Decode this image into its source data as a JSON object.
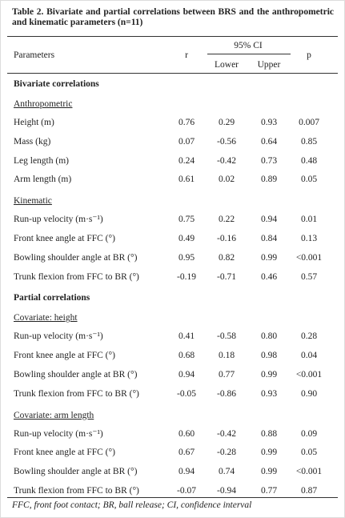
{
  "title": "Table 2. Bivariate and partial correlations between BRS and the anthropometric and kinematic parameters (n=11)",
  "header": {
    "parameters": "Parameters",
    "r": "r",
    "ci": "95% CI",
    "lower": "Lower",
    "upper": "Upper",
    "p": "p"
  },
  "sections": [
    {
      "title": "Bivariate correlations",
      "groups": [
        {
          "title": "Anthropometric",
          "rows": [
            [
              "Height (m)",
              "0.76",
              "0.29",
              "0.93",
              "0.007"
            ],
            [
              "Mass (kg)",
              "0.07",
              "-0.56",
              "0.64",
              "0.85"
            ],
            [
              "Leg length (m)",
              "0.24",
              "-0.42",
              "0.73",
              "0.48"
            ],
            [
              "Arm length (m)",
              "0.61",
              "0.02",
              "0.89",
              "0.05"
            ]
          ]
        },
        {
          "title": "Kinematic",
          "rows": [
            [
              "Run-up velocity (m·s⁻¹)",
              "0.75",
              "0.22",
              "0.94",
              "0.01"
            ],
            [
              "Front knee angle at FFC (°)",
              "0.49",
              "-0.16",
              "0.84",
              "0.13"
            ],
            [
              "Bowling shoulder angle at BR (°)",
              "0.95",
              "0.82",
              "0.99",
              "<0.001"
            ],
            [
              "Trunk flexion from FFC to BR (°)",
              "-0.19",
              "-0.71",
              "0.46",
              "0.57"
            ]
          ]
        }
      ]
    },
    {
      "title": "Partial correlations",
      "groups": [
        {
          "title": "Covariate: height",
          "rows": [
            [
              "Run-up velocity (m·s⁻¹)",
              "0.41",
              "-0.58",
              "0.80",
              "0.28"
            ],
            [
              "Front knee angle at FFC (°)",
              "0.68",
              "0.18",
              "0.98",
              "0.04"
            ],
            [
              "Bowling shoulder angle at BR (°)",
              "0.94",
              "0.77",
              "0.99",
              "<0.001"
            ],
            [
              "Trunk flexion from FFC to BR (°)",
              "-0.05",
              "-0.86",
              "0.93",
              "0.90"
            ]
          ]
        },
        {
          "title": "Covariate: arm length",
          "rows": [
            [
              "Run-up velocity (m·s⁻¹)",
              "0.60",
              "-0.42",
              "0.88",
              "0.09"
            ],
            [
              "Front knee angle at FFC (°)",
              "0.67",
              "-0.28",
              "0.99",
              "0.05"
            ],
            [
              "Bowling shoulder angle at BR (°)",
              "0.94",
              "0.74",
              "0.99",
              "<0.001"
            ],
            [
              "Trunk flexion from FFC to BR (°)",
              "-0.07",
              "-0.94",
              "0.77",
              "0.87"
            ]
          ]
        }
      ]
    }
  ],
  "footnote": "FFC, front foot contact; BR, ball release; CI, confidence interval"
}
